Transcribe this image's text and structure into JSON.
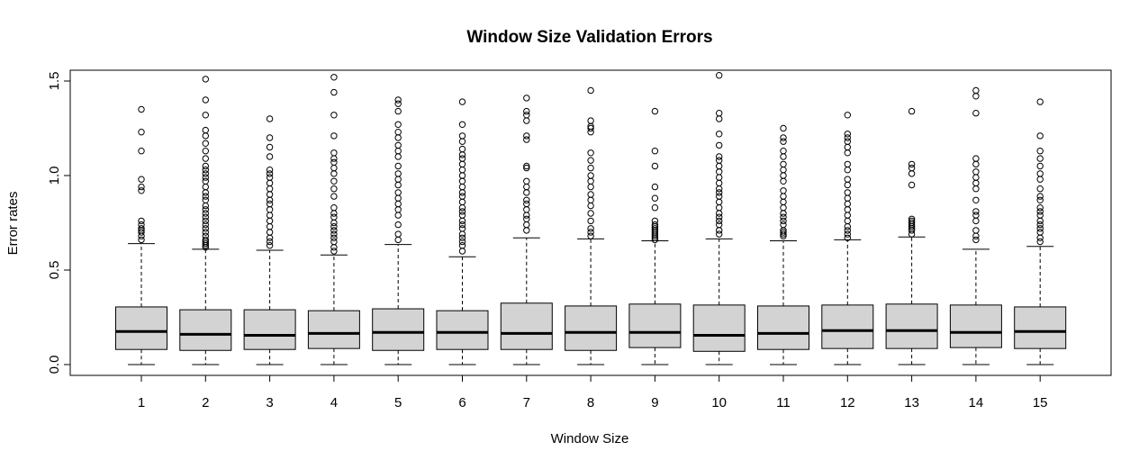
{
  "chart_data": {
    "type": "boxplot",
    "title": "Window Size Validation Errors",
    "xlabel": "Window Size",
    "ylabel": "Error rates",
    "categories": [
      "1",
      "2",
      "3",
      "4",
      "5",
      "6",
      "7",
      "8",
      "9",
      "10",
      "11",
      "12",
      "13",
      "14",
      "15"
    ],
    "yticks": [
      "0.0",
      "0.5",
      "1.0",
      "1.5"
    ],
    "ylim": [
      -0.05,
      1.55
    ],
    "grid": false,
    "legend": "none",
    "box_fill": "#d3d3d3",
    "boxes": [
      {
        "label": "1",
        "whisker_low": 0.0,
        "q1": 0.08,
        "median": 0.175,
        "q3": 0.305,
        "whisker_high": 0.64,
        "outliers": [
          0.66,
          0.68,
          0.7,
          0.71,
          0.72,
          0.74,
          0.76,
          0.92,
          0.94,
          0.98,
          1.13,
          1.23,
          1.35
        ]
      },
      {
        "label": "2",
        "whisker_low": 0.0,
        "q1": 0.075,
        "median": 0.16,
        "q3": 0.29,
        "whisker_high": 0.61,
        "outliers": [
          0.62,
          0.63,
          0.64,
          0.65,
          0.66,
          0.68,
          0.7,
          0.72,
          0.74,
          0.76,
          0.78,
          0.8,
          0.82,
          0.84,
          0.87,
          0.89,
          0.91,
          0.94,
          0.97,
          0.99,
          1.01,
          1.03,
          1.05,
          1.09,
          1.13,
          1.17,
          1.21,
          1.24,
          1.32,
          1.4,
          1.51
        ]
      },
      {
        "label": "3",
        "whisker_low": 0.0,
        "q1": 0.08,
        "median": 0.155,
        "q3": 0.29,
        "whisker_high": 0.605,
        "outliers": [
          0.63,
          0.65,
          0.67,
          0.7,
          0.73,
          0.76,
          0.79,
          0.82,
          0.85,
          0.87,
          0.9,
          0.93,
          0.96,
          0.99,
          1.01,
          1.03,
          1.1,
          1.15,
          1.2,
          1.3
        ]
      },
      {
        "label": "4",
        "whisker_low": 0.0,
        "q1": 0.085,
        "median": 0.165,
        "q3": 0.285,
        "whisker_high": 0.58,
        "outliers": [
          0.6,
          0.62,
          0.65,
          0.67,
          0.69,
          0.71,
          0.73,
          0.75,
          0.78,
          0.8,
          0.83,
          0.89,
          0.93,
          0.97,
          1.01,
          1.04,
          1.07,
          1.09,
          1.12,
          1.21,
          1.32,
          1.44,
          1.52
        ]
      },
      {
        "label": "5",
        "whisker_low": 0.0,
        "q1": 0.075,
        "median": 0.17,
        "q3": 0.295,
        "whisker_high": 0.635,
        "outliers": [
          0.66,
          0.69,
          0.74,
          0.79,
          0.82,
          0.85,
          0.88,
          0.91,
          0.95,
          0.98,
          1.01,
          1.05,
          1.1,
          1.13,
          1.16,
          1.2,
          1.23,
          1.27,
          1.34,
          1.38,
          1.4
        ]
      },
      {
        "label": "6",
        "whisker_low": 0.0,
        "q1": 0.08,
        "median": 0.17,
        "q3": 0.285,
        "whisker_high": 0.57,
        "outliers": [
          0.6,
          0.63,
          0.65,
          0.67,
          0.69,
          0.72,
          0.74,
          0.76,
          0.79,
          0.81,
          0.83,
          0.86,
          0.89,
          0.91,
          0.94,
          0.97,
          1.0,
          1.03,
          1.06,
          1.09,
          1.11,
          1.14,
          1.18,
          1.21,
          1.27,
          1.39
        ]
      },
      {
        "label": "7",
        "whisker_low": 0.0,
        "q1": 0.08,
        "median": 0.165,
        "q3": 0.325,
        "whisker_high": 0.67,
        "outliers": [
          0.71,
          0.74,
          0.77,
          0.79,
          0.82,
          0.85,
          0.87,
          0.91,
          0.94,
          0.97,
          1.04,
          1.05,
          1.19,
          1.21,
          1.29,
          1.32,
          1.34,
          1.41
        ]
      },
      {
        "label": "8",
        "whisker_low": 0.0,
        "q1": 0.075,
        "median": 0.17,
        "q3": 0.31,
        "whisker_high": 0.665,
        "outliers": [
          0.68,
          0.7,
          0.72,
          0.76,
          0.8,
          0.84,
          0.87,
          0.9,
          0.94,
          0.97,
          1.0,
          1.04,
          1.08,
          1.12,
          1.23,
          1.25,
          1.26,
          1.29,
          1.45
        ]
      },
      {
        "label": "9",
        "whisker_low": 0.0,
        "q1": 0.09,
        "median": 0.17,
        "q3": 0.32,
        "whisker_high": 0.655,
        "outliers": [
          0.66,
          0.67,
          0.68,
          0.69,
          0.7,
          0.71,
          0.72,
          0.73,
          0.74,
          0.76,
          0.83,
          0.88,
          0.94,
          1.05,
          1.13,
          1.34
        ]
      },
      {
        "label": "10",
        "whisker_low": 0.0,
        "q1": 0.07,
        "median": 0.155,
        "q3": 0.315,
        "whisker_high": 0.665,
        "outliers": [
          0.69,
          0.71,
          0.74,
          0.76,
          0.78,
          0.8,
          0.83,
          0.86,
          0.89,
          0.91,
          0.93,
          0.96,
          0.99,
          1.02,
          1.05,
          1.08,
          1.1,
          1.16,
          1.22,
          1.3,
          1.33,
          1.53
        ]
      },
      {
        "label": "11",
        "whisker_low": 0.0,
        "q1": 0.08,
        "median": 0.165,
        "q3": 0.31,
        "whisker_high": 0.655,
        "outliers": [
          0.68,
          0.69,
          0.7,
          0.71,
          0.74,
          0.76,
          0.78,
          0.8,
          0.83,
          0.86,
          0.89,
          0.92,
          0.97,
          1.0,
          1.03,
          1.06,
          1.1,
          1.13,
          1.18,
          1.2,
          1.25
        ]
      },
      {
        "label": "12",
        "whisker_low": 0.0,
        "q1": 0.085,
        "median": 0.18,
        "q3": 0.315,
        "whisker_high": 0.66,
        "outliers": [
          0.67,
          0.69,
          0.71,
          0.73,
          0.76,
          0.79,
          0.82,
          0.85,
          0.88,
          0.91,
          0.95,
          0.98,
          1.03,
          1.06,
          1.12,
          1.15,
          1.18,
          1.2,
          1.22,
          1.32
        ]
      },
      {
        "label": "13",
        "whisker_low": 0.0,
        "q1": 0.085,
        "median": 0.18,
        "q3": 0.32,
        "whisker_high": 0.675,
        "outliers": [
          0.69,
          0.71,
          0.72,
          0.73,
          0.74,
          0.75,
          0.76,
          0.77,
          0.95,
          1.01,
          1.04,
          1.06,
          1.34
        ]
      },
      {
        "label": "14",
        "whisker_low": 0.0,
        "q1": 0.09,
        "median": 0.17,
        "q3": 0.315,
        "whisker_high": 0.61,
        "outliers": [
          0.66,
          0.68,
          0.71,
          0.76,
          0.79,
          0.81,
          0.87,
          0.93,
          0.96,
          0.99,
          1.02,
          1.06,
          1.09,
          1.33,
          1.42,
          1.45
        ]
      },
      {
        "label": "15",
        "whisker_low": 0.0,
        "q1": 0.085,
        "median": 0.175,
        "q3": 0.305,
        "whisker_high": 0.625,
        "outliers": [
          0.65,
          0.67,
          0.7,
          0.72,
          0.74,
          0.76,
          0.79,
          0.81,
          0.83,
          0.87,
          0.89,
          0.93,
          0.98,
          1.01,
          1.05,
          1.09,
          1.13,
          1.21,
          1.39
        ]
      }
    ]
  }
}
